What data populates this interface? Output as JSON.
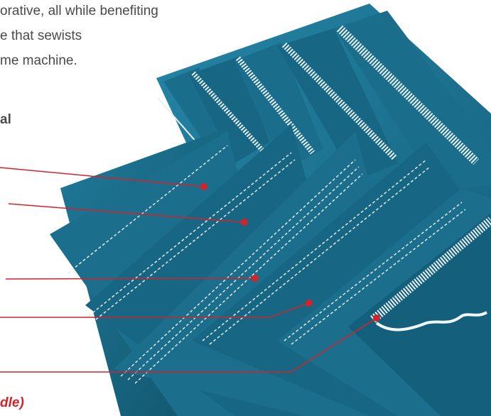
{
  "text": {
    "line1": "orative, all while benefiting",
    "line2": "e that sewists",
    "line3": "me machine.",
    "subhead": "al",
    "footer_label": "dle)"
  },
  "colors": {
    "fabric": "#1c6f8c",
    "fabric_dark": "#135770",
    "fabric_light": "#2a86a5",
    "stitch": "#e8f0f2",
    "callout": "#d2232a"
  },
  "image": {
    "subject": "stacked-teal-fabric-samples-with-stitches"
  }
}
